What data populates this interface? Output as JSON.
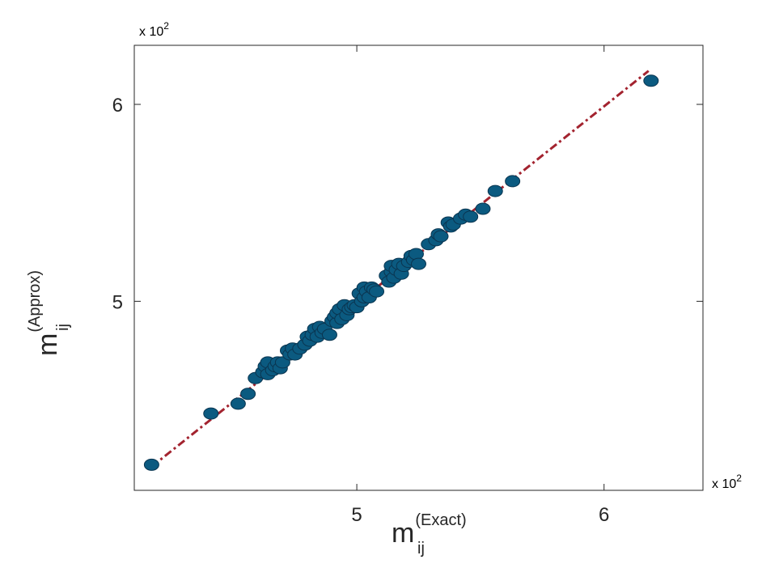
{
  "chart_data": {
    "type": "scatter",
    "xlabel": {
      "main": "m",
      "sub": "ij",
      "sup": "(Exact)"
    },
    "ylabel": {
      "main": "m",
      "sub": "ij",
      "sup": "(Approx)"
    },
    "x_exponent_label": "x 10^2",
    "y_exponent_label": "x 10^2",
    "x_ticks": [
      5,
      6
    ],
    "y_ticks": [
      5,
      6
    ],
    "xlim": [
      4.1,
      6.4
    ],
    "ylim": [
      4.04,
      6.3
    ],
    "grid": false,
    "legend": "none",
    "marker_color": "#0b5a80",
    "marker_edge_color": "#0a3550",
    "fit_line": {
      "color": "#a3232f",
      "style": "dash-dot",
      "x": [
        4.17,
        6.18
      ],
      "y": [
        4.16,
        6.17
      ]
    },
    "points": [
      [
        4.17,
        4.17
      ],
      [
        4.41,
        4.43
      ],
      [
        4.52,
        4.48
      ],
      [
        4.56,
        4.53
      ],
      [
        4.59,
        4.61
      ],
      [
        4.62,
        4.64
      ],
      [
        4.63,
        4.67
      ],
      [
        4.64,
        4.63
      ],
      [
        4.64,
        4.69
      ],
      [
        4.66,
        4.65
      ],
      [
        4.67,
        4.67
      ],
      [
        4.68,
        4.69
      ],
      [
        4.69,
        4.66
      ],
      [
        4.7,
        4.69
      ],
      [
        4.72,
        4.75
      ],
      [
        4.73,
        4.73
      ],
      [
        4.74,
        4.76
      ],
      [
        4.75,
        4.73
      ],
      [
        4.77,
        4.76
      ],
      [
        4.79,
        4.78
      ],
      [
        4.8,
        4.82
      ],
      [
        4.81,
        4.8
      ],
      [
        4.82,
        4.83
      ],
      [
        4.83,
        4.86
      ],
      [
        4.84,
        4.82
      ],
      [
        4.85,
        4.87
      ],
      [
        4.86,
        4.84
      ],
      [
        4.87,
        4.86
      ],
      [
        4.89,
        4.83
      ],
      [
        4.9,
        4.9
      ],
      [
        4.91,
        4.92
      ],
      [
        4.92,
        4.89
      ],
      [
        4.92,
        4.94
      ],
      [
        4.93,
        4.96
      ],
      [
        4.94,
        4.91
      ],
      [
        4.95,
        4.98
      ],
      [
        4.96,
        4.93
      ],
      [
        4.97,
        4.96
      ],
      [
        4.98,
        4.97
      ],
      [
        4.99,
        4.98
      ],
      [
        5.0,
        4.97
      ],
      [
        5.01,
        5.04
      ],
      [
        5.02,
        5.0
      ],
      [
        5.03,
        5.02
      ],
      [
        5.03,
        5.07
      ],
      [
        5.04,
        5.05
      ],
      [
        5.05,
        5.02
      ],
      [
        5.06,
        5.07
      ],
      [
        5.07,
        5.06
      ],
      [
        5.08,
        5.05
      ],
      [
        5.12,
        5.13
      ],
      [
        5.13,
        5.1
      ],
      [
        5.14,
        5.15
      ],
      [
        5.14,
        5.18
      ],
      [
        5.15,
        5.12
      ],
      [
        5.16,
        5.16
      ],
      [
        5.17,
        5.19
      ],
      [
        5.18,
        5.14
      ],
      [
        5.19,
        5.18
      ],
      [
        5.21,
        5.2
      ],
      [
        5.22,
        5.23
      ],
      [
        5.23,
        5.21
      ],
      [
        5.24,
        5.24
      ],
      [
        5.25,
        5.19
      ],
      [
        5.29,
        5.29
      ],
      [
        5.32,
        5.31
      ],
      [
        5.33,
        5.34
      ],
      [
        5.34,
        5.33
      ],
      [
        5.37,
        5.4
      ],
      [
        5.38,
        5.38
      ],
      [
        5.39,
        5.39
      ],
      [
        5.42,
        5.42
      ],
      [
        5.44,
        5.44
      ],
      [
        5.46,
        5.43
      ],
      [
        5.51,
        5.47
      ],
      [
        5.56,
        5.56
      ],
      [
        5.63,
        5.61
      ],
      [
        6.19,
        6.12
      ]
    ]
  }
}
